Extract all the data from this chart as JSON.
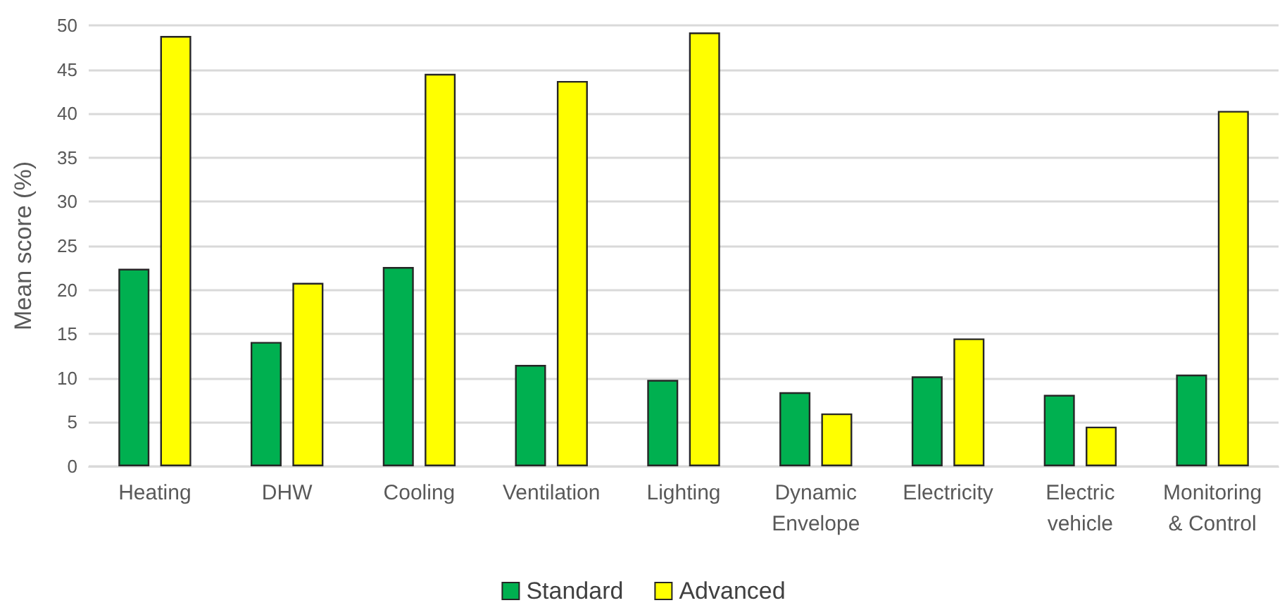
{
  "chart_data": {
    "type": "bar",
    "ylabel": "Mean score (%)",
    "categories": [
      "Heating",
      "DHW",
      "Cooling",
      "Ventilation",
      "Lighting",
      "Dynamic\nEnvelope",
      "Electricity",
      "Electric\nvehicle",
      "Monitoring\n& Control"
    ],
    "series": [
      {
        "name": "Standard",
        "color": "#00b050",
        "values": [
          22.4,
          14.1,
          22.6,
          11.5,
          9.8,
          8.4,
          10.2,
          8.1,
          10.4
        ]
      },
      {
        "name": "Advanced",
        "color": "#ffff00",
        "values": [
          48.8,
          20.8,
          44.5,
          43.7,
          49.2,
          6.0,
          14.5,
          4.5,
          40.3
        ]
      }
    ],
    "ylim": [
      0,
      50
    ],
    "yticks": [
      0,
      5,
      10,
      15,
      20,
      25,
      30,
      35,
      40,
      45,
      50
    ],
    "grid": "y",
    "legend": "bottom"
  }
}
